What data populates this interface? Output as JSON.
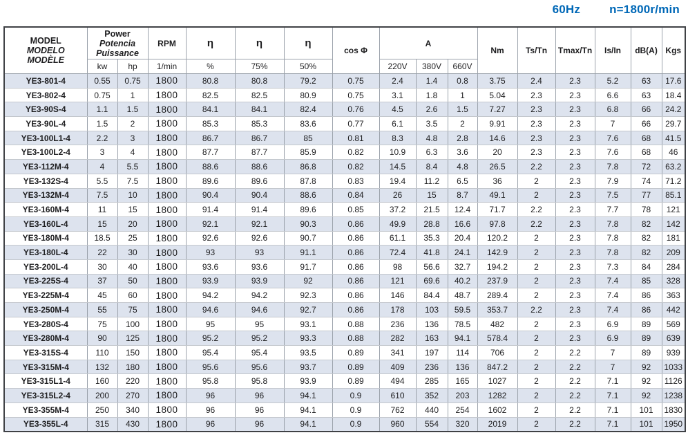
{
  "page_header": {
    "frequency": "60Hz",
    "speed": "n=1800r/min"
  },
  "colors": {
    "accent": "#0068b7",
    "stripe": "#dde3ee",
    "outer_border": "#3f4145",
    "grid_line": "#9aa1aa"
  },
  "table": {
    "header": {
      "model_lines": [
        "MODEL",
        "MODELO",
        "MODÈLE"
      ],
      "power_lines": [
        "Power",
        "Potencia",
        "Puissance"
      ],
      "power_units": [
        "kw",
        "hp"
      ],
      "rpm": "RPM",
      "rpm_unit": "1/min",
      "eta": "η",
      "eta_subs": [
        "%",
        "75%",
        "50%"
      ],
      "cos_phi": "cos Φ",
      "current": "A",
      "current_subs": [
        "220V",
        "380V",
        "660V"
      ],
      "nm": "Nm",
      "ts_tn": "Ts/Tn",
      "tmax_tn": "Tmax/Tn",
      "is_in": "Is/In",
      "db": "dB(A)",
      "kgs": "Kgs"
    },
    "column_names": [
      "cell-model",
      "cell-power-kw",
      "cell-power-hp",
      "cell-rpm",
      "cell-eta-100",
      "cell-eta-75",
      "cell-eta-50",
      "cell-cos-phi",
      "cell-current-220v",
      "cell-current-380v",
      "cell-current-660v",
      "cell-torque-nm",
      "cell-ts-tn",
      "cell-tmax-tn",
      "cell-is-in",
      "cell-noise-db",
      "cell-weight-kgs"
    ],
    "rows": [
      [
        "YE3-801-4",
        "0.55",
        "0.75",
        "1800",
        "80.8",
        "80.8",
        "79.2",
        "0.75",
        "2.4",
        "1.4",
        "0.8",
        "3.75",
        "2.4",
        "2.3",
        "5.2",
        "63",
        "17.6"
      ],
      [
        "YE3-802-4",
        "0.75",
        "1",
        "1800",
        "82.5",
        "82.5",
        "80.9",
        "0.75",
        "3.1",
        "1.8",
        "1",
        "5.04",
        "2.3",
        "2.3",
        "6.6",
        "63",
        "18.4"
      ],
      [
        "YE3-90S-4",
        "1.1",
        "1.5",
        "1800",
        "84.1",
        "84.1",
        "82.4",
        "0.76",
        "4.5",
        "2.6",
        "1.5",
        "7.27",
        "2.3",
        "2.3",
        "6.8",
        "66",
        "24.2"
      ],
      [
        "YE3-90L-4",
        "1.5",
        "2",
        "1800",
        "85.3",
        "85.3",
        "83.6",
        "0.77",
        "6.1",
        "3.5",
        "2",
        "9.91",
        "2.3",
        "2.3",
        "7",
        "66",
        "29.7"
      ],
      [
        "YE3-100L1-4",
        "2.2",
        "3",
        "1800",
        "86.7",
        "86.7",
        "85",
        "0.81",
        "8.3",
        "4.8",
        "2.8",
        "14.6",
        "2.3",
        "2.3",
        "7.6",
        "68",
        "41.5"
      ],
      [
        "YE3-100L2-4",
        "3",
        "4",
        "1800",
        "87.7",
        "87.7",
        "85.9",
        "0.82",
        "10.9",
        "6.3",
        "3.6",
        "20",
        "2.3",
        "2.3",
        "7.6",
        "68",
        "46"
      ],
      [
        "YE3-112M-4",
        "4",
        "5.5",
        "1800",
        "88.6",
        "88.6",
        "86.8",
        "0.82",
        "14.5",
        "8.4",
        "4.8",
        "26.5",
        "2.2",
        "2.3",
        "7.8",
        "72",
        "63.2"
      ],
      [
        "YE3-132S-4",
        "5.5",
        "7.5",
        "1800",
        "89.6",
        "89.6",
        "87.8",
        "0.83",
        "19.4",
        "11.2",
        "6.5",
        "36",
        "2",
        "2.3",
        "7.9",
        "74",
        "71.2"
      ],
      [
        "YE3-132M-4",
        "7.5",
        "10",
        "1800",
        "90.4",
        "90.4",
        "88.6",
        "0.84",
        "26",
        "15",
        "8.7",
        "49.1",
        "2",
        "2.3",
        "7.5",
        "77",
        "85.1"
      ],
      [
        "YE3-160M-4",
        "11",
        "15",
        "1800",
        "91.4",
        "91.4",
        "89.6",
        "0.85",
        "37.2",
        "21.5",
        "12.4",
        "71.7",
        "2.2",
        "2.3",
        "7.7",
        "78",
        "121"
      ],
      [
        "YE3-160L-4",
        "15",
        "20",
        "1800",
        "92.1",
        "92.1",
        "90.3",
        "0.86",
        "49.9",
        "28.8",
        "16.6",
        "97.8",
        "2.2",
        "2.3",
        "7.8",
        "82",
        "142"
      ],
      [
        "YE3-180M-4",
        "18.5",
        "25",
        "1800",
        "92.6",
        "92.6",
        "90.7",
        "0.86",
        "61.1",
        "35.3",
        "20.4",
        "120.2",
        "2",
        "2.3",
        "7.8",
        "82",
        "181"
      ],
      [
        "YE3-180L-4",
        "22",
        "30",
        "1800",
        "93",
        "93",
        "91.1",
        "0.86",
        "72.4",
        "41.8",
        "24.1",
        "142.9",
        "2",
        "2.3",
        "7.8",
        "82",
        "209"
      ],
      [
        "YE3-200L-4",
        "30",
        "40",
        "1800",
        "93.6",
        "93.6",
        "91.7",
        "0.86",
        "98",
        "56.6",
        "32.7",
        "194.2",
        "2",
        "2.3",
        "7.3",
        "84",
        "284"
      ],
      [
        "YE3-225S-4",
        "37",
        "50",
        "1800",
        "93.9",
        "93.9",
        "92",
        "0.86",
        "121",
        "69.6",
        "40.2",
        "237.9",
        "2",
        "2.3",
        "7.4",
        "85",
        "328"
      ],
      [
        "YE3-225M-4",
        "45",
        "60",
        "1800",
        "94.2",
        "94.2",
        "92.3",
        "0.86",
        "146",
        "84.4",
        "48.7",
        "289.4",
        "2",
        "2.3",
        "7.4",
        "86",
        "363"
      ],
      [
        "YE3-250M-4",
        "55",
        "75",
        "1800",
        "94.6",
        "94.6",
        "92.7",
        "0.86",
        "178",
        "103",
        "59.5",
        "353.7",
        "2.2",
        "2.3",
        "7.4",
        "86",
        "442"
      ],
      [
        "YE3-280S-4",
        "75",
        "100",
        "1800",
        "95",
        "95",
        "93.1",
        "0.88",
        "236",
        "136",
        "78.5",
        "482",
        "2",
        "2.3",
        "6.9",
        "89",
        "569"
      ],
      [
        "YE3-280M-4",
        "90",
        "125",
        "1800",
        "95.2",
        "95.2",
        "93.3",
        "0.88",
        "282",
        "163",
        "94.1",
        "578.4",
        "2",
        "2.3",
        "6.9",
        "89",
        "639"
      ],
      [
        "YE3-315S-4",
        "110",
        "150",
        "1800",
        "95.4",
        "95.4",
        "93.5",
        "0.89",
        "341",
        "197",
        "114",
        "706",
        "2",
        "2.2",
        "7",
        "89",
        "939"
      ],
      [
        "YE3-315M-4",
        "132",
        "180",
        "1800",
        "95.6",
        "95.6",
        "93.7",
        "0.89",
        "409",
        "236",
        "136",
        "847.2",
        "2",
        "2.2",
        "7",
        "92",
        "1033"
      ],
      [
        "YE3-315L1-4",
        "160",
        "220",
        "1800",
        "95.8",
        "95.8",
        "93.9",
        "0.89",
        "494",
        "285",
        "165",
        "1027",
        "2",
        "2.2",
        "7.1",
        "92",
        "1126"
      ],
      [
        "YE3-315L2-4",
        "200",
        "270",
        "1800",
        "96",
        "96",
        "94.1",
        "0.9",
        "610",
        "352",
        "203",
        "1282",
        "2",
        "2.2",
        "7.1",
        "92",
        "1238"
      ],
      [
        "YE3-355M-4",
        "250",
        "340",
        "1800",
        "96",
        "96",
        "94.1",
        "0.9",
        "762",
        "440",
        "254",
        "1602",
        "2",
        "2.2",
        "7.1",
        "101",
        "1830"
      ],
      [
        "YE3-355L-4",
        "315",
        "430",
        "1800",
        "96",
        "96",
        "94.1",
        "0.9",
        "960",
        "554",
        "320",
        "2019",
        "2",
        "2.2",
        "7.1",
        "101",
        "1950"
      ]
    ]
  }
}
